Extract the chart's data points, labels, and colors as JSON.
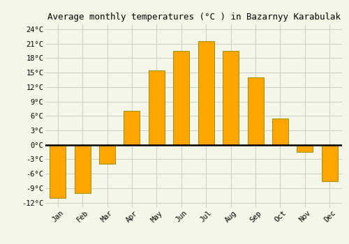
{
  "months": [
    "Jan",
    "Feb",
    "Mar",
    "Apr",
    "May",
    "Jun",
    "Jul",
    "Aug",
    "Sep",
    "Oct",
    "Nov",
    "Dec"
  ],
  "temperatures": [
    -11,
    -10,
    -4,
    7,
    15.5,
    19.5,
    21.5,
    19.5,
    14,
    5.5,
    -1.5,
    -7.5
  ],
  "bar_color_face": "#FFA500",
  "bar_color_edge": "#888800",
  "title": "Average monthly temperatures (°C ) in Bazarnyy Karabulak",
  "ylim": [
    -13,
    25
  ],
  "yticks": [
    -12,
    -9,
    -6,
    -3,
    0,
    3,
    6,
    9,
    12,
    15,
    18,
    21,
    24
  ],
  "ytick_labels": [
    "-12°C",
    "-9°C",
    "-6°C",
    "-3°C",
    "0°C",
    "3°C",
    "6°C",
    "9°C",
    "12°C",
    "15°C",
    "18°C",
    "21°C",
    "24°C"
  ],
  "background_color": "#f5f5e8",
  "grid_color": "#cccccc",
  "title_fontsize": 9,
  "tick_fontsize": 7.5,
  "bar_width": 0.65
}
